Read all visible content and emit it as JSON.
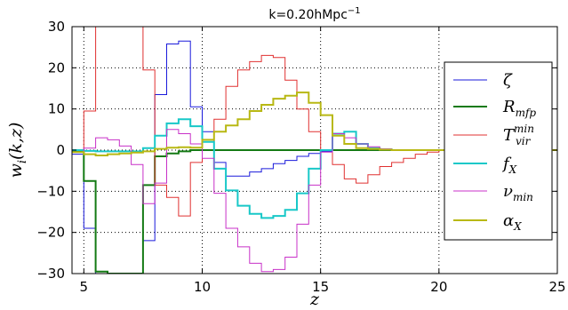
{
  "chart_data": {
    "type": "line",
    "drawstyle": "steps",
    "title_main": "k=0.20hMpc",
    "title_sup": "−1",
    "xlabel": "z",
    "ylabel_w": "w",
    "ylabel_sub": "i",
    "ylabel_args": "(k,z)",
    "xlim": [
      4.5,
      25
    ],
    "ylim": [
      -30,
      30
    ],
    "xticks": [
      5,
      10,
      15,
      20,
      25
    ],
    "yticks": [
      -30,
      -20,
      -10,
      0,
      10,
      20,
      30
    ],
    "xtick_labels": [
      "5",
      "10",
      "15",
      "20",
      "25"
    ],
    "ytick_labels": [
      "−30",
      "−20",
      "−10",
      "0",
      "10",
      "20",
      "30"
    ],
    "grid": true,
    "legend_position": "right",
    "bin_edges": [
      4.5,
      5.0,
      5.5,
      6.0,
      6.5,
      7.0,
      7.5,
      8.0,
      8.5,
      9.0,
      9.5,
      10.0,
      10.5,
      11.0,
      11.5,
      12.0,
      12.5,
      13.0,
      13.5,
      14.0,
      14.5,
      15.0,
      15.5,
      16.0,
      16.5,
      17.0,
      17.5,
      18.0,
      18.5,
      19.0,
      19.5,
      20.0,
      20.5,
      21.0,
      21.5,
      22.0,
      22.5,
      23.0,
      23.5,
      24.0,
      24.5,
      25.0
    ],
    "series": [
      {
        "symbol": "ζ",
        "sub": "",
        "sup": "",
        "color": "#1a1adb",
        "width": 1,
        "values": [
          -1,
          -19,
          -30,
          -30,
          -30,
          -30,
          -22,
          13.5,
          25.8,
          26.5,
          10.5,
          4.5,
          -3,
          -6.3,
          -6.3,
          -5.3,
          -4.5,
          -3.3,
          -2.5,
          -1.5,
          -0.8,
          -0.3,
          0,
          0,
          0,
          0,
          0,
          0,
          0,
          0,
          0,
          0,
          0,
          0,
          0,
          0,
          0,
          0,
          0,
          0,
          0
        ]
      },
      {
        "symbol": "R",
        "sub": "mfp",
        "sup": "",
        "color": "#147a14",
        "width": 2,
        "values": [
          -0.3,
          -7.5,
          -29.5,
          -30,
          -30,
          -30,
          -8.5,
          -1.5,
          -0.8,
          -0.3,
          0,
          0,
          0,
          0,
          0,
          0,
          0,
          0,
          0,
          0,
          0,
          0,
          0,
          0,
          0,
          0,
          0,
          0,
          0,
          0,
          0,
          0,
          0,
          0,
          0,
          0,
          0,
          0,
          0,
          0,
          0
        ]
      },
      {
        "symbol": "T",
        "sub": "vir",
        "sup": "min",
        "color": "#e03030",
        "width": 1,
        "values": [
          0,
          9.5,
          30,
          30,
          30,
          30,
          19.5,
          -8.5,
          -11.5,
          -16,
          -3,
          2,
          7.5,
          15.5,
          19.5,
          21.5,
          23,
          22.5,
          17,
          10,
          4.5,
          0,
          -3.5,
          -7,
          -8,
          -6,
          -4,
          -3,
          -2,
          -1,
          -0.5,
          0,
          0,
          0,
          0,
          0,
          0,
          0,
          0,
          0,
          0
        ]
      },
      {
        "symbol": "f",
        "sub": "X",
        "sup": "",
        "color": "#18c8c8",
        "width": 2,
        "values": [
          0,
          -0.2,
          -0.3,
          -0.3,
          -0.3,
          -0.3,
          0.5,
          3.5,
          6.5,
          7.5,
          5.8,
          2,
          -4.5,
          -9.8,
          -13.5,
          -15.5,
          -16.5,
          -16,
          -14.5,
          -10.5,
          -4.5,
          0,
          4,
          4.5,
          1.5,
          0.5,
          0.2,
          0,
          0,
          0,
          0,
          0,
          0,
          0,
          0,
          0,
          0,
          0,
          0,
          0,
          0
        ]
      },
      {
        "symbol": "ν",
        "sub": "min",
        "sup": "",
        "color": "#c830c8",
        "width": 1,
        "values": [
          -0.5,
          0.5,
          3,
          2.5,
          1,
          -3.5,
          -13,
          -8,
          5,
          4,
          1.5,
          -2,
          -10.5,
          -19,
          -23.5,
          -27.5,
          -29.5,
          -29,
          -26,
          -18,
          -8.5,
          -0.5,
          4,
          3,
          1.5,
          0.8,
          0.3,
          0,
          0,
          0,
          0,
          0,
          0,
          0,
          0,
          0,
          0,
          0,
          0,
          0,
          0
        ]
      },
      {
        "symbol": "α",
        "sub": "X",
        "sup": "",
        "color": "#b8b814",
        "width": 2,
        "values": [
          -0.5,
          -1,
          -1.3,
          -1,
          -0.8,
          -0.6,
          -0.3,
          0.3,
          0.6,
          0.7,
          0.6,
          2.5,
          4.5,
          6,
          7.5,
          9.5,
          11,
          12.5,
          13.2,
          14,
          11.5,
          8.5,
          3.5,
          1.5,
          0.5,
          0.3,
          0.1,
          0,
          0,
          0,
          0,
          0,
          0,
          0,
          0,
          0,
          0,
          0,
          0,
          0,
          0
        ]
      }
    ]
  }
}
